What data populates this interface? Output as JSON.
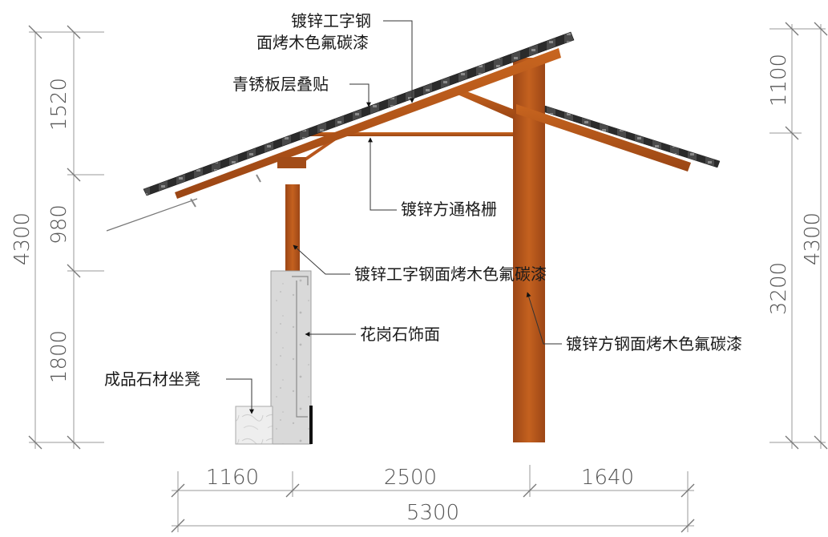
{
  "dimensions": {
    "left_upper": "1520",
    "left_middle": "980",
    "left_lower": "1800",
    "left_total": "4300",
    "right_upper": "1100",
    "right_lower": "3200",
    "right_total": "4300",
    "bottom_left": "1160",
    "bottom_middle": "2500",
    "bottom_right": "1640",
    "bottom_total": "5300"
  },
  "annotations": {
    "roof_beam_line1": "镀锌工字钢",
    "roof_beam_line2": "面烤木色氟碳漆",
    "roof_panel": "青锈板层叠贴",
    "grille": "镀锌方通格栅",
    "short_column": "镀锌工字钢面烤木色氟碳漆",
    "stone_facing": "花岗石饰面",
    "stone_seat": "成品石材坐凳",
    "main_column": "镀锌方钢面烤木色氟碳漆"
  },
  "colors": {
    "steel_wood": "#b8561c",
    "steel_wood_dark": "#8a3e12",
    "roof_panel_dark": "#2a2a2a",
    "roof_panel_light": "#e6e6e6",
    "granite": "#dcdcdc",
    "dim_line": "#9a9a9a"
  }
}
